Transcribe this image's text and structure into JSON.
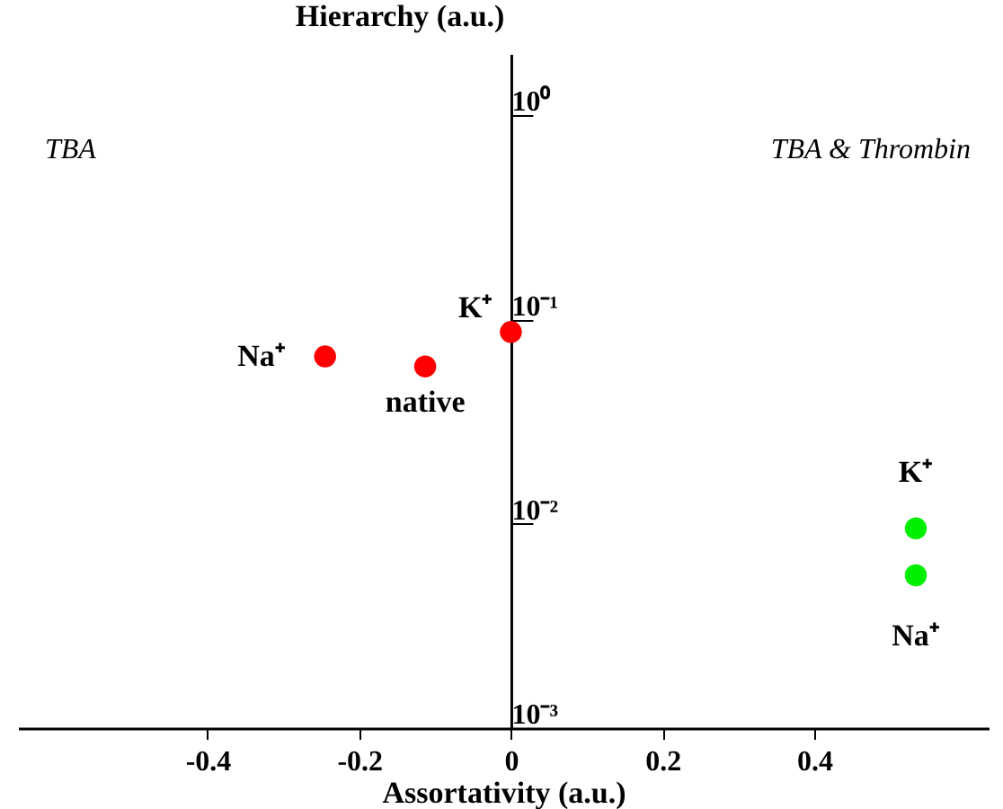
{
  "chart_data": {
    "type": "scatter",
    "xlabel": "Assortativity (a.u.)",
    "ylabel": "Hierarchy (a.u.)",
    "log": "y",
    "xlim": [
      -0.65,
      0.63
    ],
    "ylim": [
      0.001,
      2
    ],
    "xticks": [
      -0.4,
      -0.2,
      0,
      0.2,
      0.4
    ],
    "yticks": [
      {
        "value": 1,
        "label": "10⁰"
      },
      {
        "value": 0.1,
        "label": "10⁻¹"
      },
      {
        "value": 0.01,
        "label": "10⁻²"
      },
      {
        "value": 0.001,
        "label": "10⁻³"
      }
    ],
    "grid": false,
    "marker": "circle",
    "series": [
      {
        "x": [
          -0.245,
          -0.113,
          0
        ],
        "values": [
          0.066,
          0.059,
          0.087
        ],
        "color": "#ff0000"
      },
      {
        "x": [
          0.534,
          0.534
        ],
        "values": [
          0.0095,
          0.0056
        ],
        "color": "#00ee00"
      }
    ],
    "annotations": [
      "TBA",
      "TBA & Thrombin",
      {
        "text": "Na⁺",
        "x": -0.245,
        "y": 0.066
      },
      {
        "text": "native",
        "x": -0.113,
        "y": 0.059
      },
      {
        "text": "K⁺",
        "x": 0,
        "y": 0.087
      },
      {
        "text": "K⁺",
        "x": 0.534,
        "y": 0.0095
      },
      {
        "text": "Na⁺",
        "x": 0.534,
        "y": 0.0056
      }
    ]
  }
}
